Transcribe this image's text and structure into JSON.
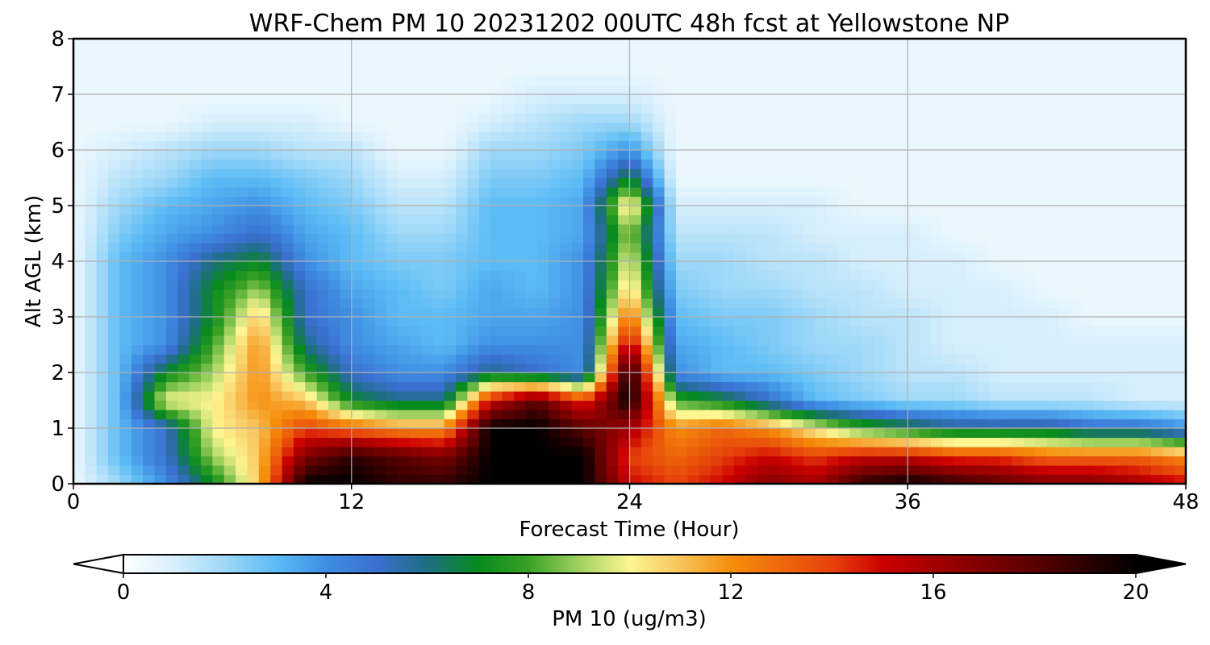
{
  "chart_data": {
    "type": "heatmap",
    "title": "WRF-Chem PM 10  20231202 00UTC 48h fcst at Yellowstone NP",
    "xlabel": "Forecast Time (Hour)",
    "ylabel": "Alt AGL (km)",
    "xlim": [
      0,
      48
    ],
    "ylim": [
      0,
      8
    ],
    "xticks": [
      0,
      12,
      24,
      36,
      48
    ],
    "yticks": [
      0,
      1,
      2,
      3,
      4,
      5,
      6,
      7,
      8
    ],
    "grid": true,
    "colorbar": {
      "label": "PM 10  (ug/m3)",
      "orientation": "horizontal",
      "placement": "bottom",
      "range": [
        0,
        20
      ],
      "ticks": [
        0,
        4,
        8,
        12,
        16,
        20
      ],
      "extend": "both",
      "colormap_stops": [
        {
          "value": 0,
          "color": "#ffffff"
        },
        {
          "value": 1,
          "color": "#d7effc"
        },
        {
          "value": 2,
          "color": "#9ed8f8"
        },
        {
          "value": 3,
          "color": "#5cbcf5"
        },
        {
          "value": 4,
          "color": "#3f8fe4"
        },
        {
          "value": 5,
          "color": "#3a6fd0"
        },
        {
          "value": 6,
          "color": "#1f6e83"
        },
        {
          "value": 7,
          "color": "#068a1e"
        },
        {
          "value": 8,
          "color": "#3aa125"
        },
        {
          "value": 9,
          "color": "#9fd160"
        },
        {
          "value": 10,
          "color": "#fdf692"
        },
        {
          "value": 11,
          "color": "#f8c35c"
        },
        {
          "value": 12,
          "color": "#f68e0b"
        },
        {
          "value": 14,
          "color": "#e6420b"
        },
        {
          "value": 15,
          "color": "#cc0000"
        },
        {
          "value": 16,
          "color": "#a30000"
        },
        {
          "value": 18,
          "color": "#5a0000"
        },
        {
          "value": 20,
          "color": "#000000"
        }
      ]
    },
    "field_description_hours": [
      0,
      2,
      4,
      6,
      8,
      10,
      12,
      14,
      16,
      18,
      20,
      22,
      24,
      26,
      28,
      30,
      32,
      34,
      36,
      38,
      40,
      42,
      44,
      46,
      48
    ],
    "field_description_alt_km": [
      0,
      0.5,
      1,
      1.5,
      2,
      2.5,
      3,
      3.5,
      4,
      4.5,
      5,
      5.5,
      6,
      6.5,
      7,
      7.5,
      8
    ],
    "values": [
      [
        0.5,
        2,
        4,
        7,
        11,
        20,
        20,
        19,
        19,
        20,
        20,
        20,
        15,
        14,
        15,
        17,
        16,
        19,
        20,
        19,
        18,
        17,
        17,
        16,
        15
      ],
      [
        0.5,
        3,
        5,
        9,
        11,
        17,
        19,
        18,
        17,
        20,
        20,
        20,
        14,
        13,
        14,
        15,
        14,
        15,
        15,
        14,
        14,
        13,
        13,
        13,
        12
      ],
      [
        0.5,
        3,
        5,
        10,
        11,
        14,
        13,
        12,
        12,
        20,
        20,
        18,
        16,
        12,
        13,
        12,
        10,
        8,
        7,
        6,
        6,
        6,
        5,
        5,
        4
      ],
      [
        0.5,
        3,
        10,
        10,
        12,
        11,
        7,
        6,
        6,
        15,
        18,
        14,
        20,
        8,
        7,
        5,
        3,
        2.5,
        2,
        2,
        1.5,
        1.5,
        1.5,
        1,
        1
      ],
      [
        0.5,
        3,
        7,
        9,
        12,
        8,
        5,
        4,
        4,
        6,
        5,
        4,
        20,
        4,
        3,
        3,
        2.5,
        2,
        1.5,
        1.5,
        1,
        1,
        1,
        1,
        1
      ],
      [
        0.5,
        3,
        4,
        8,
        12,
        6,
        4,
        3.5,
        3,
        4,
        4,
        4,
        16,
        3.5,
        3,
        2.5,
        2,
        2,
        1.5,
        1,
        1,
        1,
        1,
        1,
        1
      ],
      [
        0.5,
        3,
        4,
        7,
        11,
        5,
        4,
        3,
        3,
        3.5,
        3.5,
        4,
        13,
        3,
        2.5,
        2.5,
        2,
        1.5,
        1.5,
        1,
        1,
        1,
        0.5,
        0.5,
        0.5
      ],
      [
        0.5,
        3,
        4,
        7,
        9,
        5,
        3.5,
        3,
        2.5,
        3.5,
        3,
        4,
        11,
        2.5,
        2,
        2,
        1.5,
        1.5,
        1,
        1,
        1,
        0.5,
        0.5,
        0.5,
        0.5
      ],
      [
        0.5,
        3,
        4,
        6,
        7,
        4,
        3,
        2.5,
        2.5,
        3,
        3,
        4,
        10,
        2,
        2,
        1.5,
        1.5,
        1,
        1,
        1,
        0.5,
        0.5,
        0.5,
        0.5,
        0.5
      ],
      [
        0.5,
        2.5,
        3.5,
        4,
        5,
        3.5,
        3,
        2,
        2,
        3,
        3,
        3.5,
        9,
        1.5,
        1.5,
        1.5,
        1,
        1,
        1,
        0.5,
        0.5,
        0.5,
        0.5,
        0.5,
        0.5
      ],
      [
        0.5,
        2,
        3,
        3.5,
        4,
        3,
        2.5,
        1.5,
        1.5,
        3,
        3,
        3.5,
        11,
        1,
        1,
        1,
        1,
        0.5,
        0.5,
        0.5,
        0.5,
        0.5,
        0.5,
        0.5,
        0.5
      ],
      [
        0.5,
        1.5,
        2,
        3,
        3,
        2.5,
        2,
        1,
        1,
        2.5,
        2.5,
        3,
        7,
        0.5,
        0.5,
        0.5,
        0.5,
        0.5,
        0.5,
        0.5,
        0.5,
        0.5,
        0.5,
        0.5,
        0.5
      ],
      [
        0.5,
        1,
        1.5,
        2,
        2,
        1.5,
        1.5,
        0.5,
        0.5,
        2,
        2,
        2.5,
        4,
        0.5,
        0.5,
        0.5,
        0.5,
        0.5,
        0.5,
        0.5,
        0.5,
        0.5,
        0.5,
        0.5,
        0.5
      ],
      [
        0.5,
        0.5,
        0.5,
        1,
        1,
        1,
        0.5,
        0.5,
        0.5,
        1,
        1.5,
        2,
        2,
        0.5,
        0.5,
        0.5,
        0.5,
        0.5,
        0.5,
        0.5,
        0.5,
        0.5,
        0.5,
        0.5,
        0.5
      ],
      [
        0.5,
        0.5,
        0.5,
        0.5,
        0.5,
        0.5,
        0.5,
        0.5,
        0.5,
        0.5,
        1,
        1,
        1,
        0.5,
        0.5,
        0.5,
        0.5,
        0.5,
        0.5,
        0.5,
        0.5,
        0.5,
        0.5,
        0.5,
        0.5
      ],
      [
        0.5,
        0.5,
        0.5,
        0.5,
        0.5,
        0.5,
        0.5,
        0.5,
        0.5,
        0.5,
        0.5,
        0.5,
        0.5,
        0.5,
        0.5,
        0.5,
        0.5,
        0.5,
        0.5,
        0.5,
        0.5,
        0.5,
        0.5,
        0.5,
        0.5
      ],
      [
        0.5,
        0.5,
        0.5,
        0.5,
        0.5,
        0.5,
        0.5,
        0.5,
        0.5,
        0.5,
        0.5,
        0.5,
        0.5,
        0.5,
        0.5,
        0.5,
        0.5,
        0.5,
        0.5,
        0.5,
        0.5,
        0.5,
        0.5,
        0.5,
        0.5
      ]
    ]
  }
}
